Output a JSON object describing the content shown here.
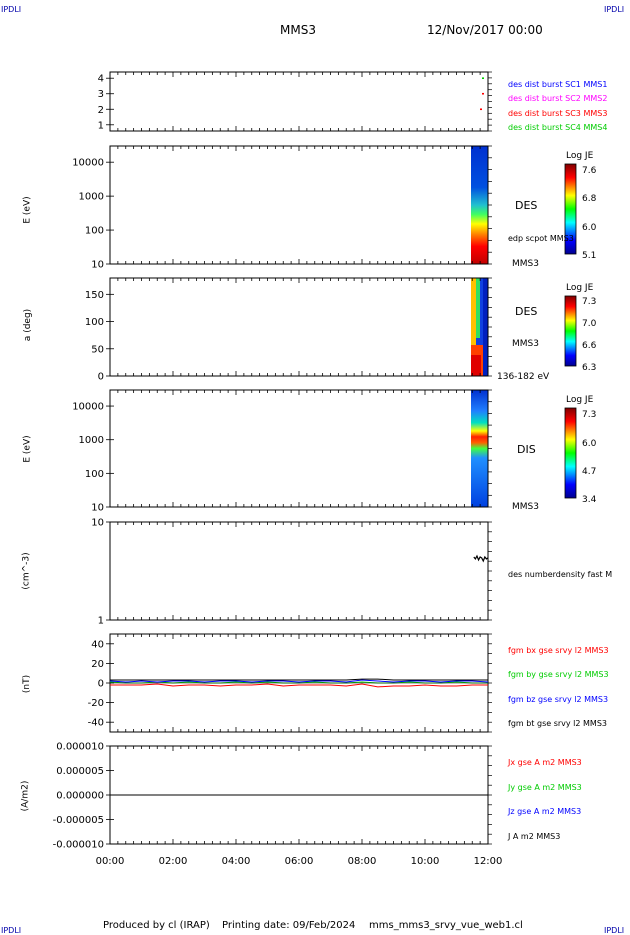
{
  "header": {
    "corner_left": "IPDLI",
    "corner_right": "IPDLI",
    "spacecraft": "MMS3",
    "date": "12/Nov/2017 00:00"
  },
  "footer": {
    "produced_by": "Produced by cl (IRAP)",
    "printing_date": "Printing date: 09/Feb/2024",
    "filename": "mms_mms3_srvy_vue_web1.cl",
    "corner_left": "IPDLI",
    "corner_right": "IPDLI"
  },
  "colors": {
    "blue": "#0000ff",
    "magenta": "#ff00ff",
    "red": "#ff0000",
    "green": "#00cc00",
    "black": "#000000"
  },
  "chart_data": [
    {
      "id": "burst",
      "type": "scatter",
      "ylim": [
        0.6,
        4.4
      ],
      "yticks": [
        "1",
        "2",
        "3",
        "4"
      ],
      "legend": [
        {
          "label": "des dist burst SC1 MMS1",
          "color": "#0000ff"
        },
        {
          "label": "des dist burst SC2 MMS2",
          "color": "#ff00ff"
        },
        {
          "label": "des dist burst SC3 MMS3",
          "color": "#ff0000"
        },
        {
          "label": "des dist burst SC4 MMS4",
          "color": "#00cc00"
        }
      ]
    },
    {
      "id": "des-energy",
      "type": "heatmap",
      "ylabel": "E (eV)",
      "yscale": "log",
      "ylim": [
        10,
        30000
      ],
      "yticks": [
        "10",
        "100",
        "1000",
        "10000"
      ],
      "species_label": "DES",
      "overlay_label": "edp scpot MMS3",
      "sc_label": "MMS3",
      "colorbar": {
        "title": "Log JE",
        "ticks": [
          "7.6",
          "6.8",
          "6.0",
          "5.1"
        ]
      }
    },
    {
      "id": "des-pitch",
      "type": "heatmap",
      "ylabel": "a (deg)",
      "ylim": [
        0,
        180
      ],
      "yticks": [
        "0",
        "50",
        "100",
        "150"
      ],
      "species_label": "DES",
      "sc_label": "MMS3",
      "energy_range": "136-182 eV",
      "colorbar": {
        "title": "Log JE",
        "ticks": [
          "7.3",
          "7.0",
          "6.6",
          "6.3"
        ]
      }
    },
    {
      "id": "dis-energy",
      "type": "heatmap",
      "ylabel": "E (eV)",
      "yscale": "log",
      "ylim": [
        10,
        30000
      ],
      "yticks": [
        "10",
        "100",
        "1000",
        "10000"
      ],
      "species_label": "DIS",
      "sc_label": "MMS3",
      "colorbar": {
        "title": "Log JE",
        "ticks": [
          "7.3",
          "6.0",
          "4.7",
          "3.4"
        ]
      }
    },
    {
      "id": "density",
      "type": "line",
      "ylabel": "(cm^-3)",
      "yscale": "log",
      "ylim": [
        1,
        10
      ],
      "yticks": [
        "1",
        "10"
      ],
      "legend": [
        {
          "label": "des numberdensity fast M",
          "color": "#000000"
        }
      ],
      "series": [
        {
          "x": [
            11.55,
            11.6,
            11.65,
            11.7,
            11.75,
            11.8,
            11.85,
            11.9,
            11.95,
            12.0
          ],
          "values": [
            4.4,
            4.2,
            4.5,
            4.1,
            4.4,
            4.3,
            4.0,
            4.4,
            4.2,
            4.3
          ]
        }
      ]
    },
    {
      "id": "fgm",
      "type": "line",
      "ylabel": "(nT)",
      "ylim": [
        -50,
        50
      ],
      "yticks": [
        "-40",
        "-20",
        "0",
        "20",
        "40"
      ],
      "legend": [
        {
          "label": "fgm bx gse srvy l2 MMS3",
          "color": "#ff0000"
        },
        {
          "label": "fgm by gse srvy l2 MMS3",
          "color": "#00cc00"
        },
        {
          "label": "fgm bz gse srvy l2 MMS3",
          "color": "#0000ff"
        },
        {
          "label": "fgm bt gse srvy l2 MMS3",
          "color": "#000000"
        }
      ],
      "x": [
        0,
        0.5,
        1,
        1.5,
        2,
        2.5,
        3,
        3.5,
        4,
        4.5,
        5,
        5.5,
        6,
        6.5,
        7,
        7.5,
        8,
        8.5,
        9,
        9.5,
        10,
        10.5,
        11,
        11.5,
        12
      ],
      "series": [
        {
          "name": "bx",
          "color": "#ff0000",
          "values": [
            -2,
            -2,
            -2,
            -1,
            -3,
            -2,
            -2,
            -3,
            -2,
            -2,
            -1,
            -3,
            -2,
            -2,
            -2,
            -3,
            -1,
            -4,
            -3,
            -3,
            -2,
            -3,
            -3,
            -2,
            -2
          ]
        },
        {
          "name": "by",
          "color": "#00cc00",
          "values": [
            1,
            0,
            0,
            1,
            0,
            1,
            0,
            0,
            1,
            0,
            1,
            0,
            0,
            1,
            0,
            0,
            1,
            0,
            0,
            1,
            0,
            0,
            1,
            0,
            0
          ]
        },
        {
          "name": "bz",
          "color": "#0000ff",
          "values": [
            2,
            1,
            2,
            1,
            2,
            2,
            1,
            2,
            2,
            1,
            2,
            2,
            1,
            2,
            2,
            1,
            3,
            2,
            1,
            2,
            2,
            1,
            2,
            2,
            1
          ]
        },
        {
          "name": "bt",
          "color": "#000000",
          "values": [
            3,
            3,
            3,
            3,
            3,
            3,
            3,
            3,
            3,
            3,
            3,
            3,
            3,
            3,
            3,
            3,
            4,
            4,
            3,
            3,
            3,
            3,
            3,
            3,
            3
          ]
        }
      ]
    },
    {
      "id": "current",
      "type": "line",
      "ylabel": "(A/m2)",
      "ylim": [
        -1e-05,
        1e-05
      ],
      "yticks": [
        "-0.000010",
        "-0.000005",
        "0.000000",
        "0.000005",
        "0.000010"
      ],
      "legend": [
        {
          "label": "Jx gse A m2 MMS3",
          "color": "#ff0000"
        },
        {
          "label": "Jy gse A m2 MMS3",
          "color": "#00cc00"
        },
        {
          "label": "Jz gse A m2 MMS3",
          "color": "#0000ff"
        },
        {
          "label": "J A m2 MMS3",
          "color": "#000000"
        }
      ],
      "series": [
        {
          "x": [
            0,
            12
          ],
          "values": [
            0,
            0
          ]
        }
      ]
    }
  ],
  "time_axis": {
    "xlim": [
      0,
      12
    ],
    "ticks": [
      "00:00",
      "02:00",
      "04:00",
      "06:00",
      "08:00",
      "10:00",
      "12:00"
    ]
  }
}
